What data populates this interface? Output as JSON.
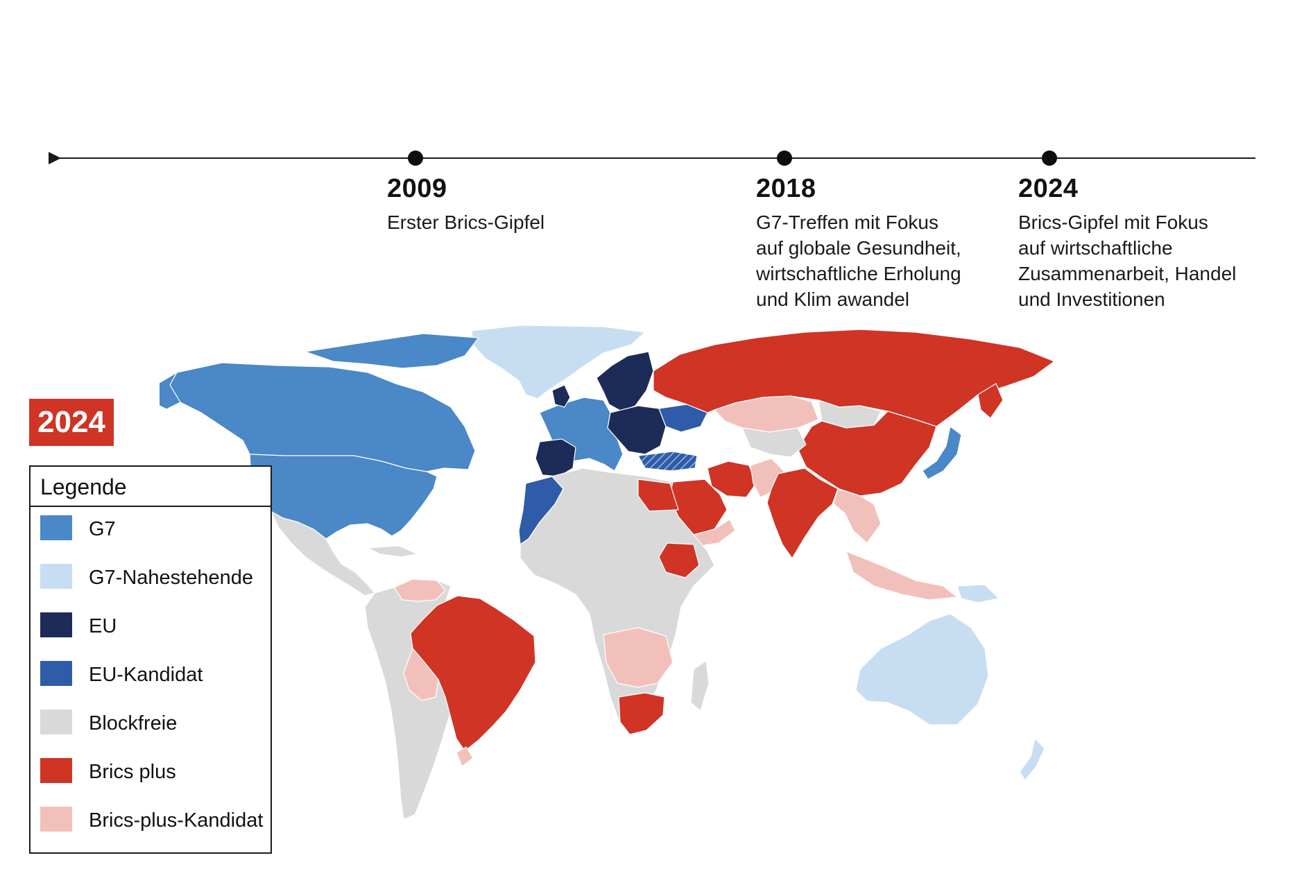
{
  "colors": {
    "g7": "#4a88c7",
    "g7_near": "#c7ddf2",
    "eu": "#1d2b59",
    "eu_candidate": "#2f5ca8",
    "nonaligned": "#d9d9d9",
    "brics_plus": "#cf3425",
    "brics_candidate": "#f2c0bb"
  },
  "timeline": {
    "events": [
      {
        "year": "2009",
        "description": "Erster Brics-Gipfel"
      },
      {
        "year": "2018",
        "description": "G7-Treffen mit Fokus\nauf globale Gesundheit,\nwirtschaftliche Erholung\nund Klim awandel"
      },
      {
        "year": "2024",
        "description": "Brics-Gipfel mit Fokus\nauf wirtschaftliche\nZusammenarbeit, Handel\nund Investitionen"
      }
    ]
  },
  "map": {
    "year_badge": "2024"
  },
  "legend": {
    "title": "Legende",
    "items": [
      {
        "label": "G7",
        "color": "#4a88c7"
      },
      {
        "label": "G7-Nahestehende",
        "color": "#c7ddf2"
      },
      {
        "label": "EU",
        "color": "#1d2b59"
      },
      {
        "label": "EU-Kandidat",
        "color": "#2f5ca8"
      },
      {
        "label": "Blockfreie",
        "color": "#d9d9d9"
      },
      {
        "label": "Brics plus",
        "color": "#cf3425"
      },
      {
        "label": "Brics-plus-Kandidat",
        "color": "#f2c0bb"
      }
    ]
  }
}
